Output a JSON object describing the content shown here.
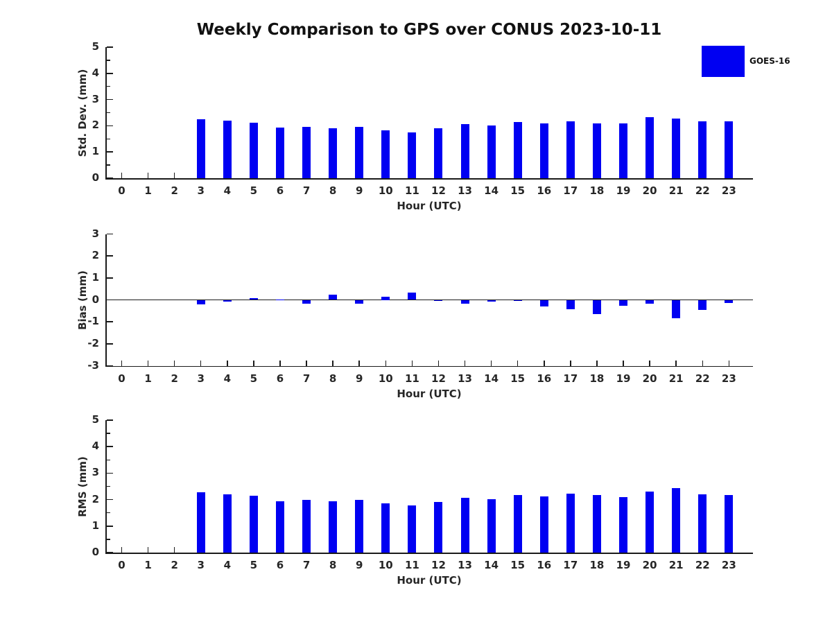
{
  "title": "Weekly Comparison to GPS over CONUS 2023-10-11",
  "legend": {
    "label": "GOES-16",
    "color": "#0000f2",
    "position": "top-right"
  },
  "colors": {
    "bar": "#0000f2",
    "axis": "#1a1a1a",
    "background": "#ffffff"
  },
  "chart_data": [
    {
      "type": "bar",
      "name": "std-dev",
      "ylabel": "Std. Dev. (mm)",
      "xlabel": "Hour (UTC)",
      "ylim": [
        0,
        5
      ],
      "yticks": [
        0,
        1,
        2,
        3,
        4,
        5
      ],
      "minor_ticks": true,
      "grid": false,
      "categories": [
        0,
        1,
        2,
        3,
        4,
        5,
        6,
        7,
        8,
        9,
        10,
        11,
        12,
        13,
        14,
        15,
        16,
        17,
        18,
        19,
        20,
        21,
        22,
        23
      ],
      "series": [
        {
          "name": "GOES-16",
          "values": [
            null,
            null,
            null,
            2.25,
            2.19,
            2.11,
            1.93,
            1.96,
            1.9,
            1.96,
            1.83,
            1.74,
            1.9,
            2.06,
            2.01,
            2.13,
            2.09,
            2.16,
            2.09,
            2.1,
            2.33,
            2.28,
            2.18,
            2.17
          ]
        }
      ]
    },
    {
      "type": "bar",
      "name": "bias",
      "ylabel": "Bias (mm)",
      "xlabel": "Hour (UTC)",
      "ylim": [
        -3,
        3
      ],
      "yticks": [
        -3,
        -2,
        -1,
        0,
        1,
        2,
        3
      ],
      "minor_ticks": false,
      "zero_line": true,
      "grid": false,
      "categories": [
        0,
        1,
        2,
        3,
        4,
        5,
        6,
        7,
        8,
        9,
        10,
        11,
        12,
        13,
        14,
        15,
        16,
        17,
        18,
        19,
        20,
        21,
        22,
        23
      ],
      "series": [
        {
          "name": "GOES-16",
          "values": [
            null,
            null,
            null,
            -0.2,
            -0.08,
            0.09,
            0.02,
            -0.16,
            0.25,
            -0.17,
            0.15,
            0.33,
            -0.04,
            -0.17,
            -0.08,
            -0.06,
            -0.3,
            -0.43,
            -0.65,
            -0.27,
            -0.16,
            -0.85,
            -0.45,
            -0.14
          ]
        }
      ]
    },
    {
      "type": "bar",
      "name": "rms",
      "ylabel": "RMS (mm)",
      "xlabel": "Hour (UTC)",
      "ylim": [
        0,
        5
      ],
      "yticks": [
        0,
        1,
        2,
        3,
        4,
        5
      ],
      "minor_ticks": true,
      "grid": false,
      "categories": [
        0,
        1,
        2,
        3,
        4,
        5,
        6,
        7,
        8,
        9,
        10,
        11,
        12,
        13,
        14,
        15,
        16,
        17,
        18,
        19,
        20,
        21,
        22,
        23
      ],
      "series": [
        {
          "name": "GOES-16",
          "values": [
            null,
            null,
            null,
            2.27,
            2.19,
            2.14,
            1.95,
            1.98,
            1.93,
            1.98,
            1.85,
            1.77,
            1.92,
            2.07,
            2.02,
            2.16,
            2.11,
            2.23,
            2.18,
            2.1,
            2.31,
            2.43,
            2.21,
            2.18
          ]
        }
      ]
    }
  ]
}
